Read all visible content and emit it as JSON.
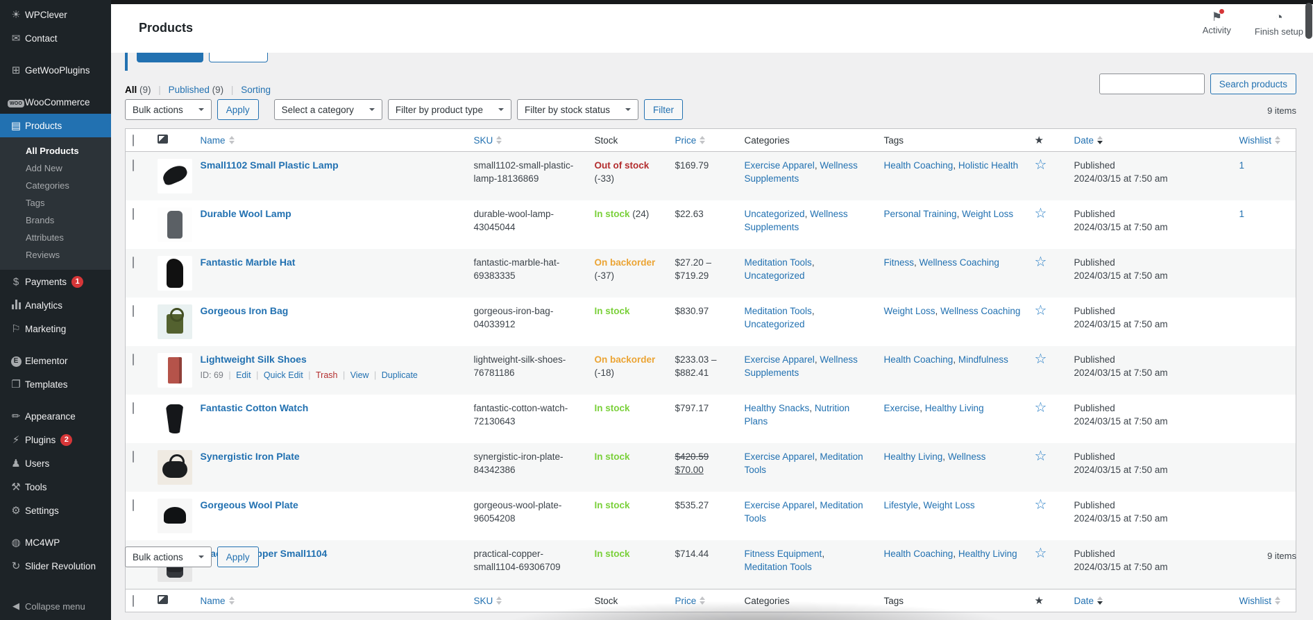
{
  "page": {
    "title": "Products",
    "activity_label": "Activity",
    "finish_setup_label": "Finish setup"
  },
  "sidebar": {
    "items": [
      {
        "label": "WPClever",
        "icon": "wpclever-icon",
        "glyph": "☀"
      },
      {
        "label": "Contact",
        "icon": "contact-icon",
        "glyph": "✉"
      },
      {
        "gap": true
      },
      {
        "label": "GetWooPlugins",
        "icon": "getwooplugins-icon",
        "glyph": "⊞"
      },
      {
        "gap": true
      },
      {
        "label": "WooCommerce",
        "icon": "woocommerce-icon",
        "glyph": "woo"
      },
      {
        "label": "Products",
        "icon": "products-icon",
        "glyph": "▤",
        "active": true
      },
      {
        "submenu": [
          "All Products",
          "Add New",
          "Categories",
          "Tags",
          "Brands",
          "Attributes",
          "Reviews"
        ],
        "current": "All Products"
      },
      {
        "label": "Payments",
        "icon": "payments-icon",
        "glyph": "$",
        "badge": "1"
      },
      {
        "label": "Analytics",
        "icon": "analytics-icon",
        "glyph": "bars"
      },
      {
        "label": "Marketing",
        "icon": "marketing-icon",
        "glyph": "⚐"
      },
      {
        "gap": true
      },
      {
        "label": "Elementor",
        "icon": "elementor-icon",
        "glyph": "E"
      },
      {
        "label": "Templates",
        "icon": "templates-icon",
        "glyph": "❐"
      },
      {
        "gap": true
      },
      {
        "label": "Appearance",
        "icon": "appearance-icon",
        "glyph": "✏"
      },
      {
        "label": "Plugins",
        "icon": "plugins-icon",
        "glyph": "⚡",
        "badge": "2"
      },
      {
        "label": "Users",
        "icon": "users-icon",
        "glyph": "♟"
      },
      {
        "label": "Tools",
        "icon": "tools-icon",
        "glyph": "⚒"
      },
      {
        "label": "Settings",
        "icon": "settings-icon",
        "glyph": "⚙"
      },
      {
        "gap": true
      },
      {
        "label": "MC4WP",
        "icon": "mc4wp-icon",
        "glyph": "◍"
      },
      {
        "label": "Slider Revolution",
        "icon": "slider-revolution-icon",
        "glyph": "↻"
      }
    ],
    "collapse_label": "Collapse menu"
  },
  "views": [
    {
      "label": "All",
      "count": "(9)",
      "current": true
    },
    {
      "label": "Published",
      "count": "(9)"
    },
    {
      "label": "Sorting",
      "count": ""
    }
  ],
  "filters": {
    "bulk_actions": "Bulk actions",
    "apply": "Apply",
    "category": "Select a category",
    "product_type": "Filter by product type",
    "stock_status": "Filter by stock status",
    "filter_button": "Filter"
  },
  "search": {
    "value": "",
    "button": "Search products"
  },
  "items_count": "9 items",
  "table": {
    "columns": {
      "name": "Name",
      "sku": "SKU",
      "stock": "Stock",
      "price": "Price",
      "categories": "Categories",
      "tags": "Tags",
      "date": "Date",
      "wishlist": "Wishlist"
    },
    "published_label": "Published",
    "date_value": "2024/03/15 at 7:50 am",
    "rows": [
      {
        "name": "Small1102 Small Plastic Lamp",
        "sku": "small1102-small-plastic-lamp-18136869",
        "stock_status": "Out of stock",
        "stock_type": "out",
        "stock_qty": "(-33)",
        "price": "$169.79",
        "categories": [
          "Exercise Apparel",
          "Wellness Supplements"
        ],
        "tags": [
          "Health Coaching",
          "Holistic Health"
        ],
        "wishlist": "1",
        "thumb": "sneaker"
      },
      {
        "name": "Durable Wool Lamp",
        "sku": "durable-wool-lamp-43045044",
        "stock_status": "In stock",
        "stock_type": "in",
        "stock_qty": "(24)",
        "price": "$22.63",
        "categories": [
          "Uncategorized",
          "Wellness Supplements"
        ],
        "tags": [
          "Personal Training",
          "Weight Loss"
        ],
        "wishlist": "1",
        "thumb": "shirt"
      },
      {
        "name": "Fantastic Marble Hat",
        "sku": "fantastic-marble-hat-69383335",
        "stock_status": "On backorder",
        "stock_type": "back",
        "stock_qty": "(-37)",
        "price": "$27.20 – $719.29",
        "categories": [
          "Meditation Tools",
          "Uncategorized"
        ],
        "tags": [
          "Fitness",
          "Wellness Coaching"
        ],
        "wishlist": "",
        "thumb": "shorts"
      },
      {
        "name": "Gorgeous Iron Bag",
        "sku": "gorgeous-iron-bag-04033912",
        "stock_status": "In stock",
        "stock_type": "in",
        "stock_qty": "",
        "price": "$830.97",
        "categories": [
          "Meditation Tools",
          "Uncategorized"
        ],
        "tags": [
          "Weight Loss",
          "Wellness Coaching"
        ],
        "wishlist": "",
        "thumb": "tote"
      },
      {
        "name": "Lightweight Silk Shoes",
        "sku": "lightweight-silk-shoes-76781186",
        "stock_status": "On backorder",
        "stock_type": "back",
        "stock_qty": "(-18)",
        "price": "$233.03 – $882.41",
        "categories": [
          "Exercise Apparel",
          "Wellness Supplements"
        ],
        "tags": [
          "Health Coaching",
          "Mindfulness"
        ],
        "wishlist": "",
        "thumb": "book",
        "actions": {
          "id_label": "ID: 69",
          "links": [
            "Edit",
            "Quick Edit",
            "Trash",
            "View",
            "Duplicate"
          ]
        }
      },
      {
        "name": "Fantastic Cotton Watch",
        "sku": "fantastic-cotton-watch-72130643",
        "stock_status": "In stock",
        "stock_type": "in",
        "stock_qty": "",
        "price": "$797.17",
        "categories": [
          "Healthy Snacks",
          "Nutrition Plans"
        ],
        "tags": [
          "Exercise",
          "Healthy Living"
        ],
        "wishlist": "",
        "thumb": "bra"
      },
      {
        "name": "Synergistic Iron Plate",
        "sku": "synergistic-iron-plate-84342386",
        "stock_status": "In stock",
        "stock_type": "in",
        "stock_qty": "",
        "price_del": "$420.59",
        "price_ins": "$70.00",
        "categories": [
          "Exercise Apparel",
          "Meditation Tools"
        ],
        "tags": [
          "Healthy Living",
          "Wellness"
        ],
        "wishlist": "",
        "thumb": "duffel"
      },
      {
        "name": "Gorgeous Wool Plate",
        "sku": "gorgeous-wool-plate-96054208",
        "stock_status": "In stock",
        "stock_type": "in",
        "stock_qty": "",
        "price": "$535.27",
        "categories": [
          "Exercise Apparel",
          "Meditation Tools"
        ],
        "tags": [
          "Lifestyle",
          "Weight Loss"
        ],
        "wishlist": "",
        "thumb": "cap"
      },
      {
        "name": "Practical Copper Small1104",
        "sku": "practical-copper-small1104-69306709",
        "stock_status": "In stock",
        "stock_type": "in",
        "stock_qty": "",
        "price": "$714.44",
        "categories": [
          "Fitness Equipment",
          "Meditation Tools"
        ],
        "tags": [
          "Health Coaching",
          "Healthy Living"
        ],
        "wishlist": "",
        "thumb": "backpack"
      }
    ]
  },
  "colors": {
    "accent": "#2271b1",
    "in_stock": "#7ad03a",
    "on_backorder": "#eba434",
    "out_of_stock": "#b32d2e",
    "badge": "#d63638",
    "sidebar_bg": "#1d2327",
    "submenu_bg": "#2c3338"
  }
}
